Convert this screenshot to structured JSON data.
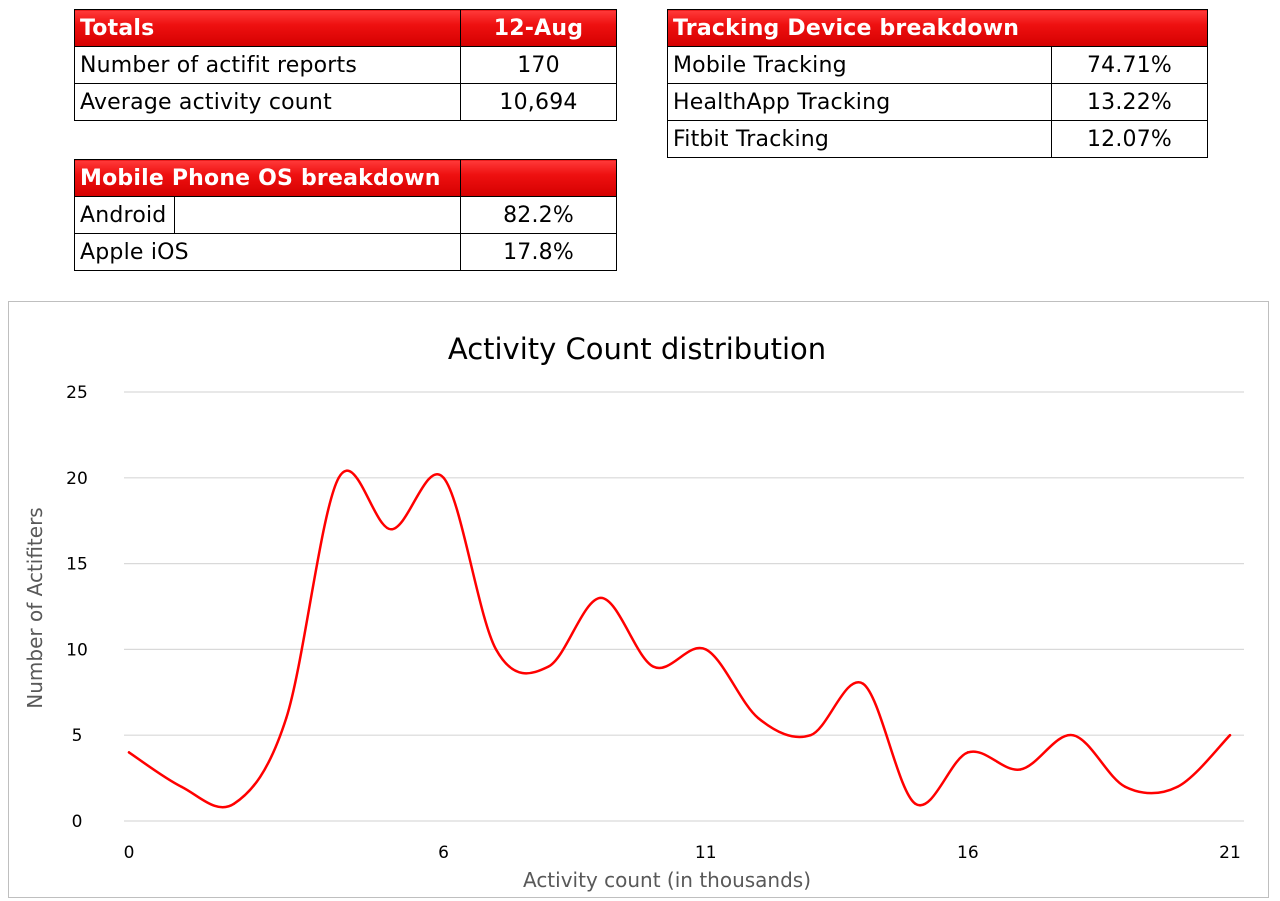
{
  "totals": {
    "header_label": "Totals",
    "header_date": "12-Aug",
    "rows": [
      {
        "label": "Number of actifit reports",
        "value": "170"
      },
      {
        "label": "Average activity count",
        "value": "10,694"
      }
    ]
  },
  "os_breakdown": {
    "header_label": "Mobile Phone OS breakdown",
    "rows": [
      {
        "label": "Android",
        "value": "82.2%"
      },
      {
        "label": "Apple iOS",
        "value": "17.8%"
      }
    ]
  },
  "tracking": {
    "header_label": "Tracking Device breakdown",
    "rows": [
      {
        "label": "Mobile Tracking",
        "value": "74.71%"
      },
      {
        "label": "HealthApp Tracking",
        "value": "13.22%"
      },
      {
        "label": "Fitbit Tracking",
        "value": "12.07%"
      }
    ]
  },
  "chart_data": {
    "type": "line",
    "title": "Activity Count distribution",
    "xlabel": "Activity count (in thousands)",
    "ylabel": "Number of Actifiters",
    "xlim": [
      0,
      21
    ],
    "ylim": [
      0,
      25
    ],
    "x_ticks": [
      0,
      6,
      11,
      16,
      21
    ],
    "y_ticks": [
      0,
      5,
      10,
      15,
      20,
      25
    ],
    "grid": true,
    "smooth": true,
    "line_color": "#ff0000",
    "x": [
      0,
      1,
      2,
      3,
      4,
      5,
      6,
      7,
      8,
      9,
      10,
      11,
      12,
      13,
      14,
      15,
      16,
      17,
      18,
      19,
      20,
      21
    ],
    "values": [
      4,
      2,
      1,
      6,
      20,
      17,
      20,
      10,
      9,
      13,
      9,
      10,
      6,
      5,
      8,
      1,
      4,
      3,
      5,
      2,
      2,
      5
    ]
  }
}
